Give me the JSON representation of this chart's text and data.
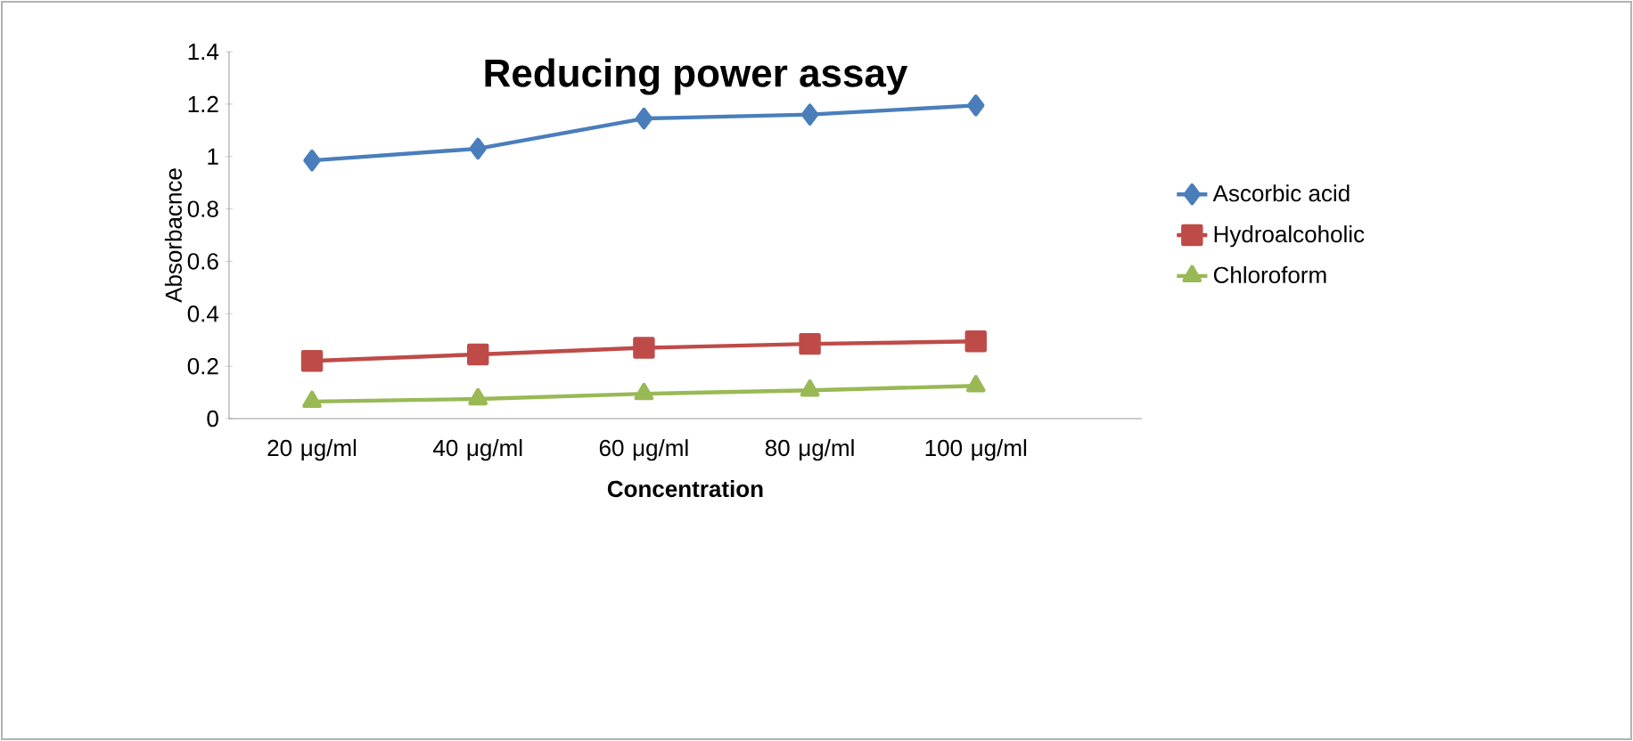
{
  "chart_data": {
    "type": "line",
    "title": "Reducing power assay",
    "xlabel": "Concentration",
    "ylabel": "Absorbacnce",
    "categories": [
      "20 μg/ml",
      "40 μg/ml",
      "60 μg/ml",
      "80 μg/ml",
      "100 μg/ml"
    ],
    "series": [
      {
        "name": "Ascorbic acid",
        "color": "#4a7ebb",
        "marker": "diamond",
        "values": [
          0.985,
          1.03,
          1.145,
          1.16,
          1.195
        ]
      },
      {
        "name": "Hydroalcoholic",
        "color": "#be4b48",
        "marker": "square",
        "values": [
          0.22,
          0.245,
          0.27,
          0.285,
          0.295
        ]
      },
      {
        "name": "Chloroform",
        "color": "#98b954",
        "marker": "triangle",
        "values": [
          0.065,
          0.075,
          0.095,
          0.108,
          0.125
        ]
      }
    ],
    "ylim": [
      0,
      1.4
    ],
    "yticks": [
      0,
      0.2,
      0.4,
      0.6,
      0.8,
      1,
      1.2,
      1.4
    ],
    "grid": false,
    "legend": "right"
  }
}
